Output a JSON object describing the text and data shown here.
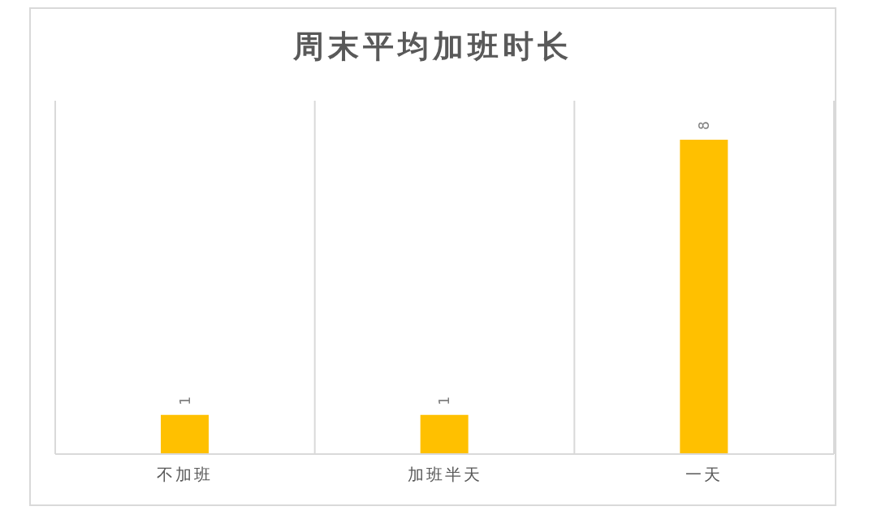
{
  "chart_data": {
    "type": "bar",
    "title": "周末平均加班时长",
    "categories": [
      "不加班",
      "加班半天",
      "一天"
    ],
    "values": [
      1,
      1,
      8
    ],
    "color": "#ffc000",
    "data_labels": true,
    "grid": "x"
  }
}
